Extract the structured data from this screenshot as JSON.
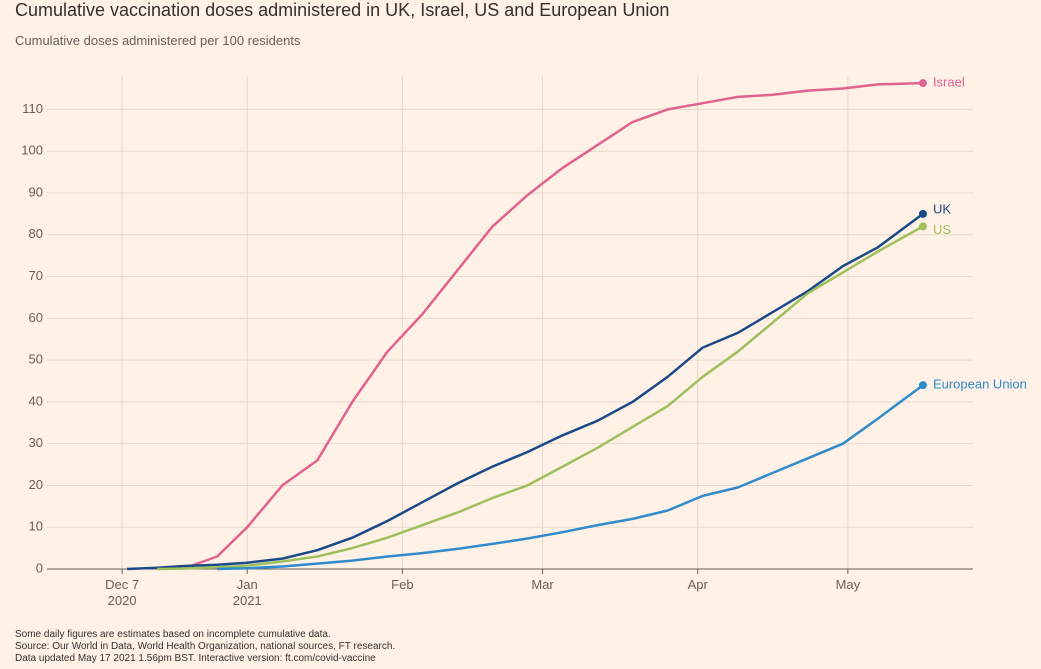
{
  "chart_data": {
    "type": "line",
    "title": "Cumulative vaccination doses administered in UK, Israel, US and European Union",
    "subtitle": "Cumulative doses administered per 100 residents",
    "notes": [
      "Some daily figures are estimates based on incomplete cumulative data.",
      "Source: Our World in Data, World Health Organization, national sources, FT research.",
      "Data updated May 17 2021 1.56pm BST. Interactive version: ft.com/covid-vaccine"
    ],
    "x": [
      "2020-12-08",
      "2020-12-14",
      "2020-12-19",
      "2020-12-26",
      "2021-01-01",
      "2021-01-08",
      "2021-01-15",
      "2021-01-22",
      "2021-01-29",
      "2021-02-05",
      "2021-02-12",
      "2021-02-19",
      "2021-02-26",
      "2021-03-05",
      "2021-03-12",
      "2021-03-19",
      "2021-03-26",
      "2021-04-02",
      "2021-04-09",
      "2021-04-16",
      "2021-04-23",
      "2021-04-30",
      "2021-05-07",
      "2021-05-16"
    ],
    "series": [
      {
        "name": "Israel",
        "color": "#e0628e",
        "values": [
          null,
          null,
          0,
          3,
          10,
          20,
          26,
          40,
          52,
          61,
          71.5,
          82,
          89.5,
          96,
          101.5,
          107,
          110,
          111.5,
          113,
          113.5,
          114.5,
          115,
          116,
          116.3
        ]
      },
      {
        "name": "UK",
        "color": "#1b4a8a",
        "values": [
          0,
          0.3,
          0.7,
          1,
          1.5,
          2.5,
          4.5,
          7.5,
          11.5,
          16,
          20.5,
          24.5,
          28,
          32,
          35.5,
          40,
          46,
          53,
          56.5,
          61.5,
          66.5,
          72.5,
          77,
          85
        ]
      },
      {
        "name": "US",
        "color": "#9dc05c",
        "values": [
          null,
          0,
          0.1,
          0.4,
          0.8,
          1.8,
          3,
          5,
          7.5,
          10.5,
          13.5,
          17,
          20,
          24.5,
          29,
          34,
          39,
          46,
          52,
          59,
          66,
          71,
          76,
          82
        ]
      },
      {
        "name": "European Union",
        "color": "#2f8bcb",
        "values": [
          null,
          null,
          null,
          0,
          0.2,
          0.6,
          1.3,
          2,
          3,
          3.8,
          4.8,
          6,
          7.3,
          8.8,
          10.5,
          12,
          14,
          17.5,
          19.5,
          23,
          26.5,
          30,
          36,
          44
        ]
      }
    ],
    "xlim": [
      "2020-11-22",
      "2021-05-26"
    ],
    "xticks": [
      {
        "value": "2020-12-07",
        "label": "Dec 7\n2020"
      },
      {
        "value": "2021-01-01",
        "label": "Jan\n2021"
      },
      {
        "value": "2021-02-01",
        "label": "Feb"
      },
      {
        "value": "2021-03-01",
        "label": "Mar"
      },
      {
        "value": "2021-04-01",
        "label": "Apr"
      },
      {
        "value": "2021-05-01",
        "label": "May"
      }
    ],
    "ylim": [
      0,
      118
    ],
    "yticks": [
      0,
      10,
      20,
      30,
      40,
      50,
      60,
      70,
      80,
      90,
      100,
      110
    ],
    "grid": true
  }
}
